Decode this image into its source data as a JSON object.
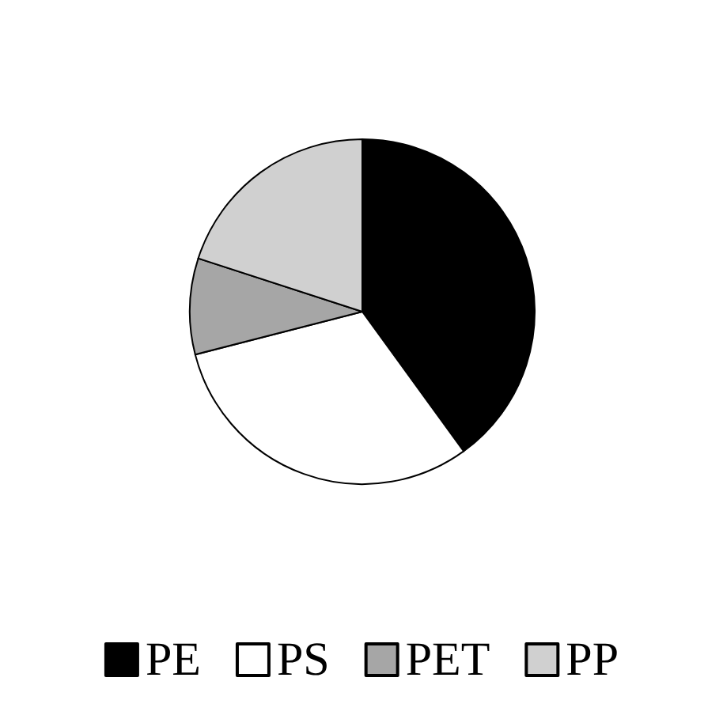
{
  "chart_data": {
    "type": "pie",
    "categories": [
      "PE",
      "PS",
      "PET",
      "PP"
    ],
    "values": [
      40,
      31,
      9,
      20
    ],
    "colors": [
      "#000000",
      "#ffffff",
      "#a6a6a6",
      "#d0d0d0"
    ],
    "legend": "bottom"
  }
}
